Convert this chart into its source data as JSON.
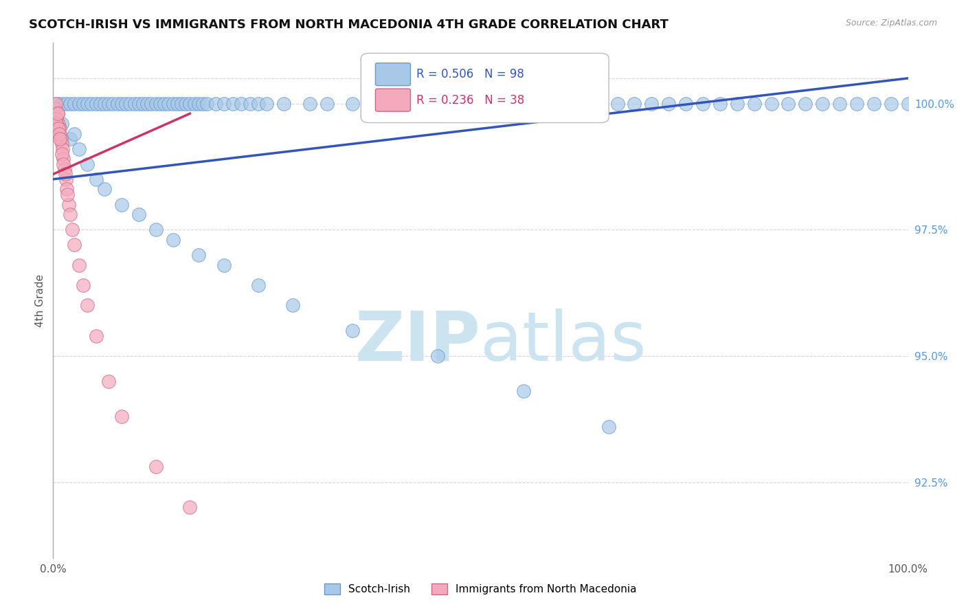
{
  "title": "SCOTCH-IRISH VS IMMIGRANTS FROM NORTH MACEDONIA 4TH GRADE CORRELATION CHART",
  "source_text": "Source: ZipAtlas.com",
  "ylabel": "4th Grade",
  "yticks": [
    92.5,
    95.0,
    97.5,
    100.0
  ],
  "ytick_labels": [
    "92.5%",
    "95.0%",
    "97.5%",
    "100.0%"
  ],
  "xlim": [
    0.0,
    100.0
  ],
  "ylim": [
    91.0,
    101.2
  ],
  "legend_blue_r": "0.506",
  "legend_blue_n": "98",
  "legend_pink_r": "0.236",
  "legend_pink_n": "38",
  "blue_color": "#a8c8e8",
  "blue_edge_color": "#6699cc",
  "blue_line_color": "#3355bb",
  "pink_color": "#f4aabc",
  "pink_edge_color": "#cc6688",
  "pink_line_color": "#cc3366",
  "grid_color": "#cccccc",
  "background_color": "#ffffff",
  "watermark_color": "#cce4f0",
  "blue_scatter_x": [
    0.5,
    1.0,
    1.5,
    2.0,
    2.5,
    3.0,
    3.5,
    4.0,
    4.5,
    5.0,
    5.5,
    6.0,
    6.5,
    7.0,
    7.5,
    8.0,
    8.5,
    9.0,
    9.5,
    10.0,
    10.5,
    11.0,
    11.5,
    12.0,
    12.5,
    13.0,
    13.5,
    14.0,
    14.5,
    15.0,
    15.5,
    16.0,
    16.5,
    17.0,
    17.5,
    18.0,
    19.0,
    20.0,
    21.0,
    22.0,
    23.0,
    24.0,
    25.0,
    27.0,
    30.0,
    32.0,
    35.0,
    37.0,
    40.0,
    42.0,
    44.0,
    46.0,
    48.0,
    50.0,
    52.0,
    54.0,
    56.0,
    58.0,
    60.0,
    62.0,
    64.0,
    66.0,
    68.0,
    70.0,
    72.0,
    74.0,
    76.0,
    78.0,
    80.0,
    82.0,
    84.0,
    86.0,
    88.0,
    90.0,
    92.0,
    94.0,
    96.0,
    98.0,
    100.0,
    2.0,
    3.0,
    4.0,
    5.0,
    6.0,
    8.0,
    10.0,
    12.0,
    14.0,
    17.0,
    20.0,
    24.0,
    28.0,
    35.0,
    45.0,
    55.0,
    65.0,
    1.0,
    2.5
  ],
  "blue_scatter_y": [
    100.0,
    100.0,
    100.0,
    100.0,
    100.0,
    100.0,
    100.0,
    100.0,
    100.0,
    100.0,
    100.0,
    100.0,
    100.0,
    100.0,
    100.0,
    100.0,
    100.0,
    100.0,
    100.0,
    100.0,
    100.0,
    100.0,
    100.0,
    100.0,
    100.0,
    100.0,
    100.0,
    100.0,
    100.0,
    100.0,
    100.0,
    100.0,
    100.0,
    100.0,
    100.0,
    100.0,
    100.0,
    100.0,
    100.0,
    100.0,
    100.0,
    100.0,
    100.0,
    100.0,
    100.0,
    100.0,
    100.0,
    100.0,
    100.0,
    100.0,
    100.0,
    100.0,
    100.0,
    100.0,
    100.0,
    100.0,
    100.0,
    100.0,
    100.0,
    100.0,
    100.0,
    100.0,
    100.0,
    100.0,
    100.0,
    100.0,
    100.0,
    100.0,
    100.0,
    100.0,
    100.0,
    100.0,
    100.0,
    100.0,
    100.0,
    100.0,
    100.0,
    100.0,
    100.0,
    99.3,
    99.1,
    98.8,
    98.5,
    98.3,
    98.0,
    97.8,
    97.5,
    97.3,
    97.0,
    96.8,
    96.4,
    96.0,
    95.5,
    95.0,
    94.3,
    93.6,
    99.6,
    99.4
  ],
  "pink_scatter_x": [
    0.1,
    0.2,
    0.3,
    0.4,
    0.5,
    0.5,
    0.6,
    0.7,
    0.8,
    0.9,
    1.0,
    1.1,
    1.2,
    1.3,
    1.5,
    1.6,
    1.8,
    2.0,
    2.2,
    2.5,
    3.0,
    3.5,
    4.0,
    5.0,
    6.5,
    8.0,
    12.0,
    16.0,
    0.3,
    0.4,
    0.5,
    0.6,
    0.7,
    0.8,
    1.0,
    1.2,
    1.4,
    1.7
  ],
  "pink_scatter_y": [
    99.8,
    99.9,
    100.0,
    99.7,
    99.8,
    99.5,
    99.6,
    99.4,
    99.5,
    99.3,
    99.2,
    99.1,
    98.9,
    98.7,
    98.5,
    98.3,
    98.0,
    97.8,
    97.5,
    97.2,
    96.8,
    96.4,
    96.0,
    95.4,
    94.5,
    93.8,
    92.8,
    92.0,
    99.7,
    99.6,
    99.8,
    99.5,
    99.4,
    99.3,
    99.0,
    98.8,
    98.6,
    98.2
  ],
  "blue_trend_x0": 0.0,
  "blue_trend_x1": 100.0,
  "blue_trend_y0": 98.5,
  "blue_trend_y1": 100.5,
  "pink_trend_x0": 0.0,
  "pink_trend_x1": 16.0,
  "pink_trend_y0": 98.6,
  "pink_trend_y1": 99.8
}
